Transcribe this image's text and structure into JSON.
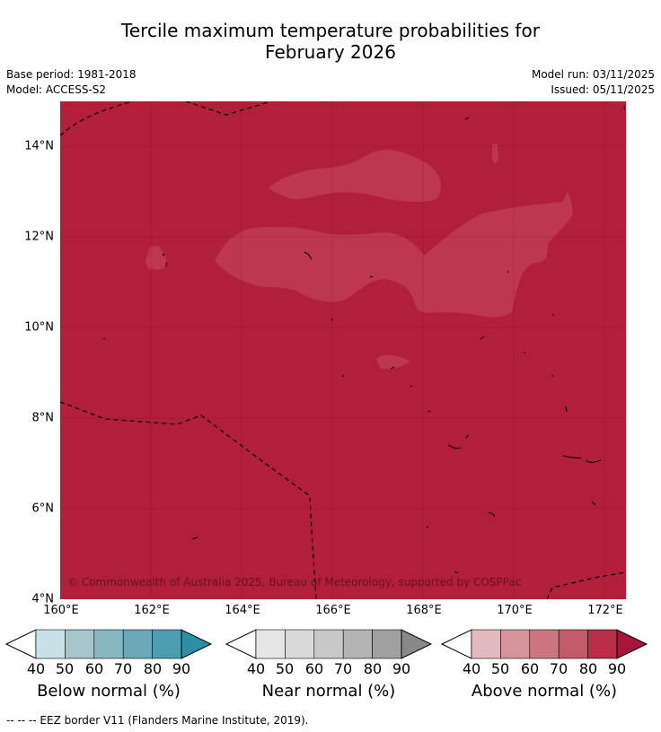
{
  "title_line1": "Tercile maximum temperature probabilities for",
  "title_line2": "February 2026",
  "base_period": "Base period: 1981-2018",
  "model": "Model: ACCESS-S2",
  "model_run": "Model run: 03/11/2025",
  "issued": "Issued: 05/11/2025",
  "map": {
    "lat_labels": [
      "14°N",
      "12°N",
      "10°N",
      "8°N",
      "6°N",
      "4°N"
    ],
    "lon_labels": [
      "160°E",
      "162°E",
      "164°E",
      "166°E",
      "168°E",
      "170°E",
      "172°E"
    ],
    "copyright": "© Commonwealth of Australia 2025, Bureau of Meteorology, supported by COSPPac",
    "fill_category": "Above normal",
    "fill_probability_band": "80-90",
    "patch_probability_band": "70-80"
  },
  "colorbars": [
    {
      "name": "Below normal (%)",
      "ticks": [
        "40",
        "50",
        "60",
        "70",
        "80",
        "90"
      ],
      "colors": [
        "#c9e0e6",
        "#a7c6cc",
        "#88b7c2",
        "#6aaab8",
        "#4c9fb1",
        "#2d8ea6"
      ]
    },
    {
      "name": "Near normal (%)",
      "ticks": [
        "40",
        "50",
        "60",
        "70",
        "80",
        "90"
      ],
      "colors": [
        "#e6e6e6",
        "#d9d9d9",
        "#c8c8c8",
        "#b4b4b4",
        "#a0a0a0",
        "#888888"
      ]
    },
    {
      "name": "Above normal (%)",
      "ticks": [
        "40",
        "50",
        "60",
        "70",
        "80",
        "90"
      ],
      "colors": [
        "#e2b9be",
        "#d6959d",
        "#cc7682",
        "#c25a68",
        "#b92d46",
        "#a5163a"
      ]
    }
  ],
  "footnote": "--  --  -- EEZ border V11 (Flanders Marine Institute, 2019)."
}
